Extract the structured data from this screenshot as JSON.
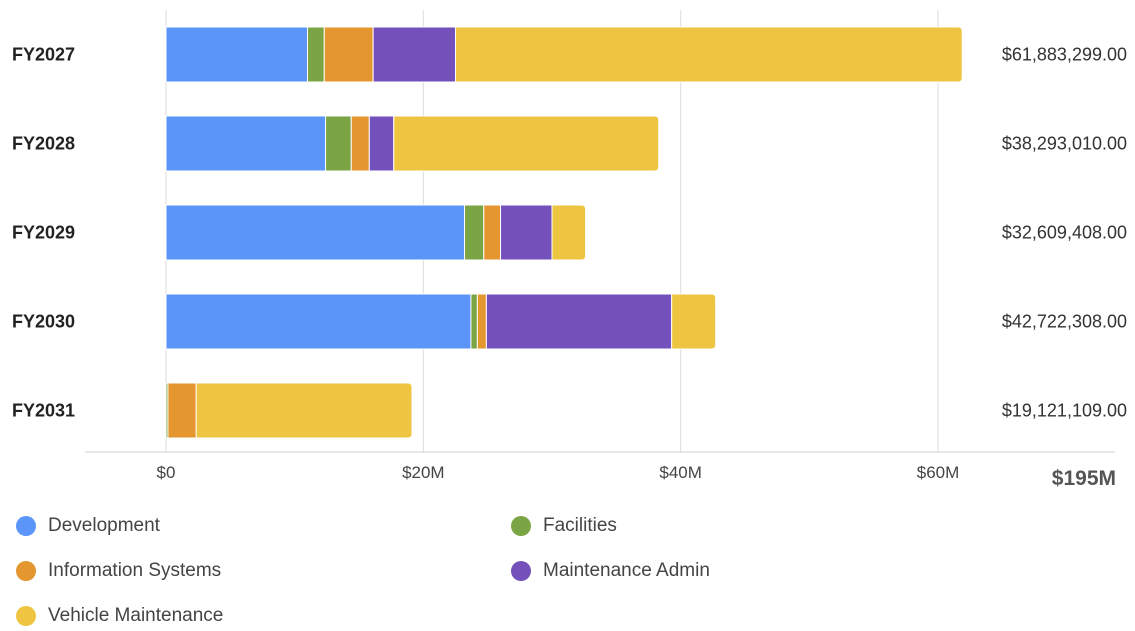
{
  "chart_data": {
    "type": "bar",
    "orientation": "horizontal",
    "stacked": true,
    "categories": [
      "FY2027",
      "FY2028",
      "FY2029",
      "FY2030",
      "FY2031"
    ],
    "series": [
      {
        "name": "Development",
        "color": "#5B95F9",
        "values": [
          11000000,
          12400000,
          23200000,
          23700000,
          0
        ]
      },
      {
        "name": "Facilities",
        "color": "#7BA444",
        "values": [
          1300000,
          2000000,
          1500000,
          500000,
          150000
        ]
      },
      {
        "name": "Information Systems",
        "color": "#E4962F",
        "values": [
          3800000,
          1400000,
          1300000,
          700000,
          2200000
        ]
      },
      {
        "name": "Maintenance Admin",
        "color": "#7350BA",
        "values": [
          6400000,
          1900000,
          4000000,
          14400000,
          0
        ]
      },
      {
        "name": "Vehicle Maintenance",
        "color": "#EEC540",
        "values": [
          39383299,
          20593010,
          2609408,
          3422308,
          16771109
        ]
      }
    ],
    "totals": [
      "$61,883,299.00",
      "$38,293,010.00",
      "$32,609,408.00",
      "$42,722,308.00",
      "$19,121,109.00"
    ],
    "x_ticks": [
      {
        "value": 0,
        "label": "$0"
      },
      {
        "value": 20000000,
        "label": "$20M"
      },
      {
        "value": 40000000,
        "label": "$40M"
      },
      {
        "value": 60000000,
        "label": "$60M"
      }
    ],
    "xlim": [
      0,
      60000000
    ],
    "grand_total": "$195M",
    "grid": true,
    "legend_position": "bottom"
  }
}
